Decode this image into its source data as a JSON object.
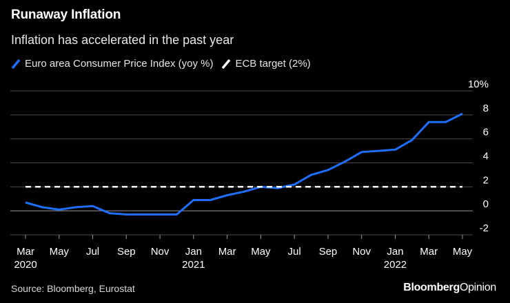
{
  "header": {
    "title": "Runaway Inflation",
    "subtitle": "Inflation has accelerated in the past year"
  },
  "footer": {
    "source": "Source: Bloomberg, Eurostat",
    "brand_part1": "Bloomberg",
    "brand_part2": "Opinion"
  },
  "chart_data": {
    "type": "line",
    "title": "Runaway Inflation",
    "subtitle": "Inflation has accelerated in the past year",
    "x": [
      "Mar 2020",
      "Apr 2020",
      "May 2020",
      "Jun 2020",
      "Jul 2020",
      "Aug 2020",
      "Sep 2020",
      "Oct 2020",
      "Nov 2020",
      "Dec 2020",
      "Jan 2021",
      "Feb 2021",
      "Mar 2021",
      "Apr 2021",
      "May 2021",
      "Jun 2021",
      "Jul 2021",
      "Aug 2021",
      "Sep 2021",
      "Oct 2021",
      "Nov 2021",
      "Dec 2021",
      "Jan 2022",
      "Feb 2022",
      "Mar 2022",
      "Apr 2022",
      "May 2022"
    ],
    "series": [
      {
        "name": "Euro area Consumer Price Index (yoy %)",
        "color": "#1f6fff",
        "style": "solid",
        "values": [
          0.7,
          0.3,
          0.1,
          0.3,
          0.4,
          -0.2,
          -0.3,
          -0.3,
          -0.3,
          -0.3,
          0.9,
          0.9,
          1.3,
          1.6,
          2.0,
          1.9,
          2.2,
          3.0,
          3.4,
          4.1,
          4.9,
          5.0,
          5.1,
          5.9,
          7.4,
          7.4,
          8.1
        ]
      },
      {
        "name": "ECB target (2%)",
        "color": "#ffffff",
        "style": "dashed",
        "values": [
          2,
          2,
          2,
          2,
          2,
          2,
          2,
          2,
          2,
          2,
          2,
          2,
          2,
          2,
          2,
          2,
          2,
          2,
          2,
          2,
          2,
          2,
          2,
          2,
          2,
          2,
          2
        ]
      }
    ],
    "ylim": [
      -2,
      10
    ],
    "yticks": [
      -2,
      0,
      2,
      4,
      6,
      8,
      10
    ],
    "ytick_labels": [
      "-2",
      "0",
      "2",
      "4",
      "6",
      "8",
      "10%"
    ],
    "xticks": [
      {
        "month": "Mar",
        "year": "2020"
      },
      {
        "month": "May",
        "year": ""
      },
      {
        "month": "Jul",
        "year": ""
      },
      {
        "month": "Sep",
        "year": ""
      },
      {
        "month": "Nov",
        "year": ""
      },
      {
        "month": "Jan",
        "year": "2021"
      },
      {
        "month": "Mar",
        "year": ""
      },
      {
        "month": "May",
        "year": ""
      },
      {
        "month": "Jul",
        "year": ""
      },
      {
        "month": "Sep",
        "year": ""
      },
      {
        "month": "Nov",
        "year": ""
      },
      {
        "month": "Jan",
        "year": "2022"
      },
      {
        "month": "Mar",
        "year": ""
      },
      {
        "month": "May",
        "year": ""
      }
    ],
    "xlabel": "",
    "ylabel": "",
    "grid": true,
    "legend_position": "top-left"
  }
}
